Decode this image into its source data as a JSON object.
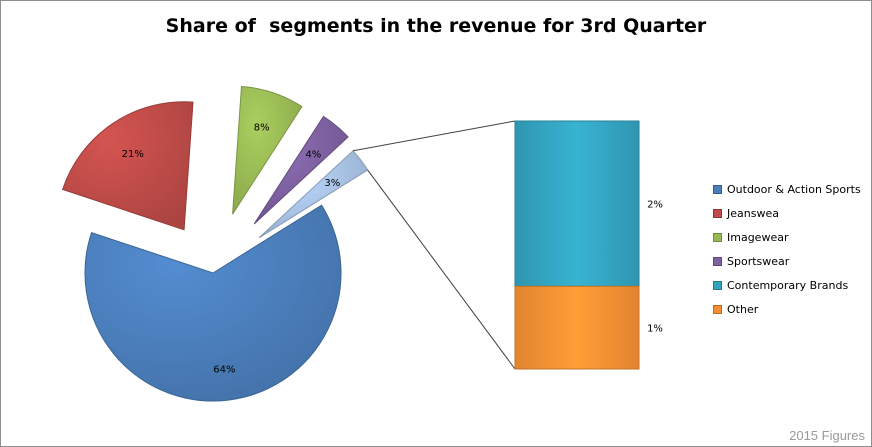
{
  "chart_data": {
    "type": "bar-of-pie",
    "title": "Share of  segments in the revenue for 3rd Quarter",
    "pie": {
      "categories": [
        "Outdoor & Action Sports",
        "Jeanswea",
        "Imagewear",
        "Sportswear",
        "Other"
      ],
      "values": [
        64,
        21,
        8,
        4,
        3
      ],
      "labels": [
        "64%",
        "21%",
        "8%",
        "4%",
        "3%"
      ],
      "colors": [
        "#4a7ebb",
        "#be4b48",
        "#98b954",
        "#7d60a0",
        "#a7c1e3"
      ]
    },
    "bar": {
      "categories": [
        "Contemporary Brands",
        "Other"
      ],
      "values": [
        2,
        1
      ],
      "labels": [
        "2%",
        "1%"
      ],
      "colors": [
        "#33a3bf",
        "#f59032"
      ]
    },
    "legend": {
      "position": "right",
      "entries": [
        {
          "label": "Outdoor & Action Sports",
          "color": "#4a7ebb"
        },
        {
          "label": "Jeanswea",
          "color": "#be4b48"
        },
        {
          "label": "Imagewear",
          "color": "#98b954"
        },
        {
          "label": "Sportswear",
          "color": "#7d60a0"
        },
        {
          "label": "Contemporary Brands",
          "color": "#33a3bf"
        },
        {
          "label": "Other",
          "color": "#f59032"
        }
      ]
    }
  },
  "watermark": "2015 Figures"
}
